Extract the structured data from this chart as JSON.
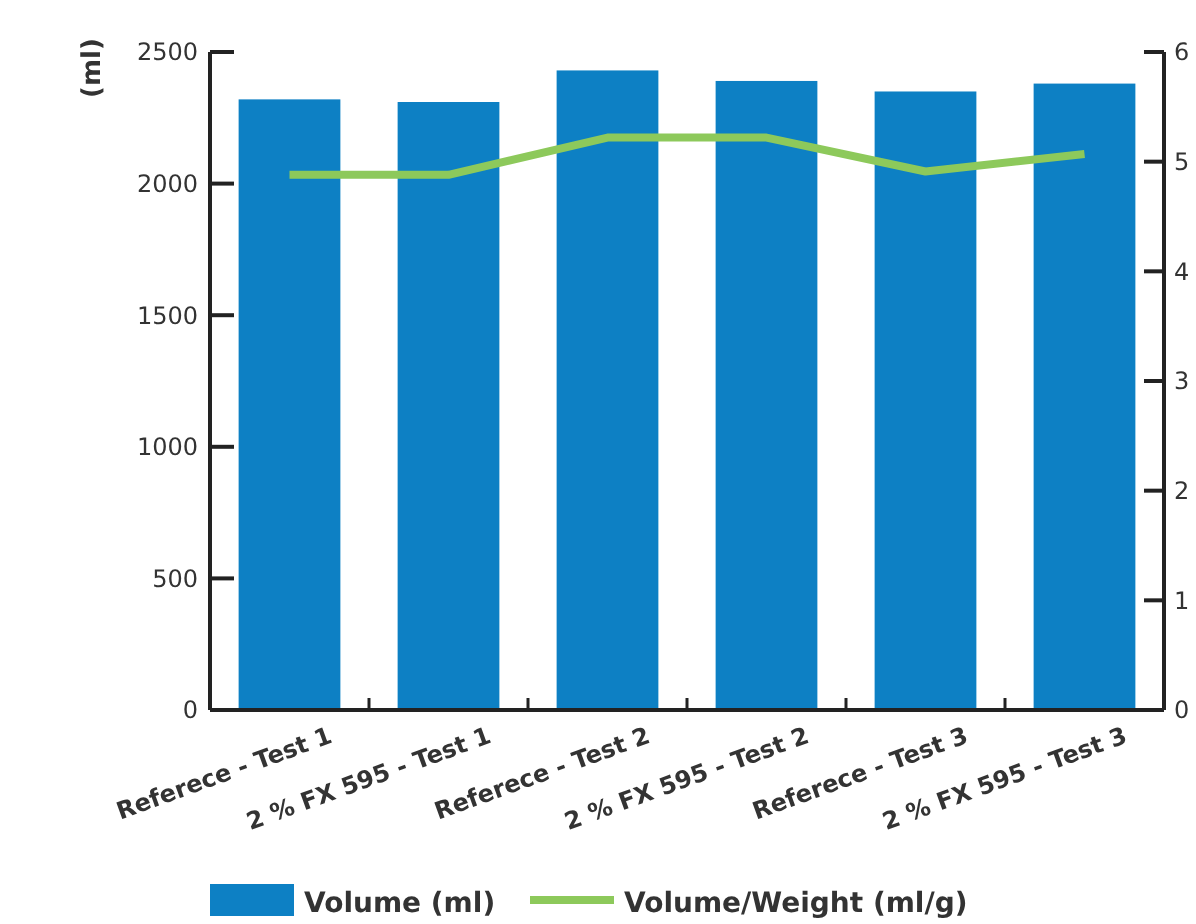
{
  "chart_data": {
    "type": "bar",
    "ylabel": "(ml)",
    "categories": [
      "Referece - Test 1",
      "2 % FX 595 - Test 1",
      "Referece - Test 2",
      "2 % FX 595 - Test 2",
      "Referece - Test 3",
      "2 % FX 595 - Test 3"
    ],
    "series": [
      {
        "name": "Volume (ml)",
        "color": "#0d80c4",
        "values": [
          2320,
          2310,
          2430,
          2390,
          2350,
          2380
        ]
      },
      {
        "name": "Volume/Weight (ml/g)",
        "type": "line",
        "axis": "y2",
        "color": "#8dc95b",
        "values": [
          4.88,
          4.88,
          5.22,
          5.22,
          4.91,
          5.07
        ]
      }
    ],
    "ylim": [
      0,
      2500
    ],
    "yticks": [
      0,
      500,
      1000,
      1500,
      2000,
      2500
    ],
    "y2lim": [
      0,
      6
    ],
    "y2ticks": [
      0,
      1,
      2,
      3,
      4,
      5,
      6
    ],
    "legend": "bottom",
    "marker": "none",
    "line_style": "solid",
    "grid": false
  }
}
